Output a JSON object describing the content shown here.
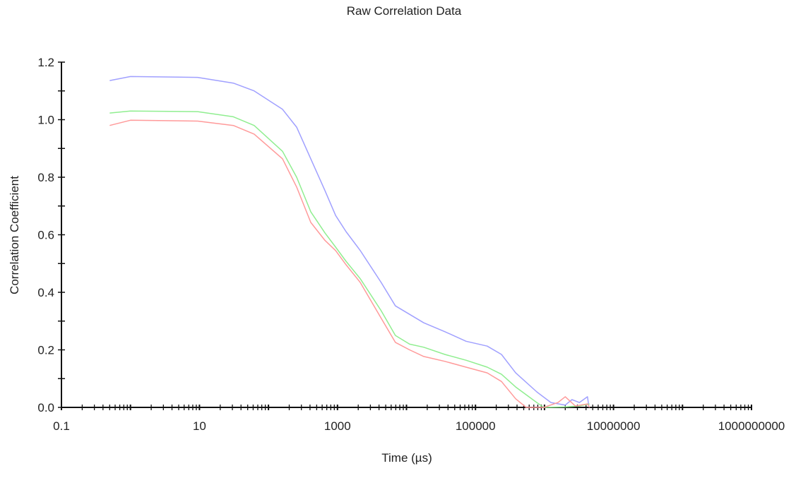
{
  "chart_data": {
    "type": "line",
    "title": "Raw Correlation Data",
    "xlabel": "Time (µs)",
    "ylabel": "Correlation Coefficient",
    "xscale": "log",
    "xlim": [
      0.1,
      1000000000
    ],
    "ylim": [
      0,
      1.2
    ],
    "xticks": [
      0.1,
      10,
      1000,
      100000,
      10000000,
      1000000000
    ],
    "xtick_labels": [
      "0.1",
      "10",
      "1000",
      "100000",
      "10000000",
      "1000000000"
    ],
    "yticks": [
      0,
      0.2,
      0.4,
      0.6,
      0.8,
      1.0,
      1.2
    ],
    "ytick_labels": [
      "0.0",
      "0.2",
      "0.4",
      "0.6",
      "0.8",
      "1.0",
      "1.2"
    ],
    "grid": false,
    "legend": "none",
    "series": [
      {
        "name": "blue",
        "color": "#a0a0ff",
        "x": [
          0.5,
          1,
          9.4,
          31,
          62,
          160,
          256,
          410,
          660,
          940,
          1330,
          2140,
          4300,
          6900,
          17800,
          36000,
          73000,
          148000,
          238000,
          382000,
          774000,
          1240000,
          2000000,
          2500000,
          3200000,
          4200000,
          4400000
        ],
        "y": [
          1.136,
          1.15,
          1.147,
          1.127,
          1.1,
          1.036,
          0.974,
          0.864,
          0.753,
          0.667,
          0.611,
          0.545,
          0.434,
          0.353,
          0.294,
          0.263,
          0.23,
          0.213,
          0.184,
          0.12,
          0.054,
          0.017,
          0.008,
          0.027,
          0.017,
          0.037,
          0.002
        ]
      },
      {
        "name": "green",
        "color": "#90ee90",
        "x": [
          0.5,
          1,
          9.4,
          31,
          62,
          160,
          256,
          410,
          660,
          940,
          1330,
          2140,
          4300,
          6900,
          11100,
          17800,
          36000,
          73000,
          148000,
          238000,
          382000,
          774000,
          977000,
          2000000,
          3200000,
          4500000
        ],
        "y": [
          1.023,
          1.03,
          1.028,
          1.01,
          0.98,
          0.89,
          0.8,
          0.68,
          0.606,
          0.557,
          0.508,
          0.447,
          0.336,
          0.25,
          0.22,
          0.209,
          0.184,
          0.164,
          0.14,
          0.115,
          0.071,
          0.017,
          0.0,
          0.002,
          0.005,
          0.012
        ]
      },
      {
        "name": "red",
        "color": "#ff9a9a",
        "x": [
          0.5,
          1,
          9.4,
          31,
          62,
          160,
          256,
          410,
          660,
          940,
          1330,
          2140,
          4300,
          6900,
          11100,
          17800,
          36000,
          73000,
          148000,
          238000,
          382000,
          543000,
          977000,
          1570000,
          2000000,
          2800000,
          4200000,
          4500000
        ],
        "y": [
          0.98,
          0.998,
          0.995,
          0.98,
          0.95,
          0.864,
          0.766,
          0.643,
          0.58,
          0.545,
          0.496,
          0.434,
          0.31,
          0.226,
          0.2,
          0.177,
          0.16,
          0.14,
          0.12,
          0.09,
          0.03,
          0.0,
          0.0,
          0.017,
          0.037,
          0.005,
          0.012,
          0.0
        ]
      }
    ]
  }
}
